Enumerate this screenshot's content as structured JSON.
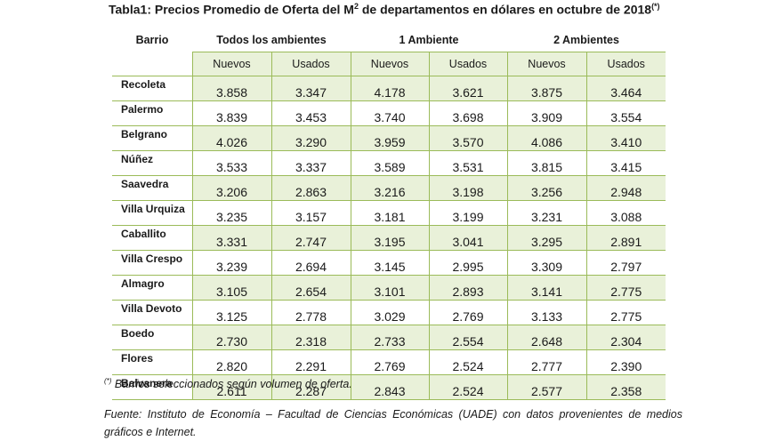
{
  "title": {
    "pre": "Tabla1: Precios Promedio de Oferta del M",
    "sup": "2",
    "post": " de departamentos en dólares en octubre de 2018",
    "mark": "(*)"
  },
  "header": {
    "barrio": "Barrio",
    "groups": [
      "Todos los ambientes",
      "1 Ambiente",
      "2 Ambientes"
    ],
    "sub": [
      "Nuevos",
      "Usados",
      "Nuevos",
      "Usados",
      "Nuevos",
      "Usados"
    ]
  },
  "rows": [
    {
      "name": "Recoleta",
      "values": [
        "3.858",
        "3.347",
        "4.178",
        "3.621",
        "3.875",
        "3.464"
      ]
    },
    {
      "name": "Palermo",
      "values": [
        "3.839",
        "3.453",
        "3.740",
        "3.698",
        "3.909",
        "3.554"
      ]
    },
    {
      "name": "Belgrano",
      "values": [
        "4.026",
        "3.290",
        "3.959",
        "3.570",
        "4.086",
        "3.410"
      ]
    },
    {
      "name": "Núñez",
      "values": [
        "3.533",
        "3.337",
        "3.589",
        "3.531",
        "3.815",
        "3.415"
      ]
    },
    {
      "name": "Saavedra",
      "values": [
        "3.206",
        "2.863",
        "3.216",
        "3.198",
        "3.256",
        "2.948"
      ]
    },
    {
      "name": "Villa Urquiza",
      "values": [
        "3.235",
        "3.157",
        "3.181",
        "3.199",
        "3.231",
        "3.088"
      ]
    },
    {
      "name": "Caballito",
      "values": [
        "3.331",
        "2.747",
        "3.195",
        "3.041",
        "3.295",
        "2.891"
      ]
    },
    {
      "name": "Villa Crespo",
      "values": [
        "3.239",
        "2.694",
        "3.145",
        "2.995",
        "3.309",
        "2.797"
      ]
    },
    {
      "name": "Almagro",
      "values": [
        "3.105",
        "2.654",
        "3.101",
        "2.893",
        "3.141",
        "2.775"
      ]
    },
    {
      "name": "Villa Devoto",
      "values": [
        "3.125",
        "2.778",
        "3.029",
        "2.769",
        "3.133",
        "2.775"
      ]
    },
    {
      "name": "Boedo",
      "values": [
        "2.730",
        "2.318",
        "2.733",
        "2.554",
        "2.648",
        "2.304"
      ]
    },
    {
      "name": "Flores",
      "values": [
        "2.820",
        "2.291",
        "2.769",
        "2.524",
        "2.777",
        "2.390"
      ]
    },
    {
      "name": "Balvanera",
      "values": [
        "2.611",
        "2.287",
        "2.843",
        "2.524",
        "2.577",
        "2.358"
      ]
    }
  ],
  "note": {
    "mark": "(*)",
    "text": " Barrios seleccionados según volumen de oferta."
  },
  "source": "Fuente: Instituto de Economía – Facultad de Ciencias Económicas (UADE) con datos provenientes de medios gráficos e Internet.",
  "colors": {
    "row_shade": "#e9f1d9",
    "grid_line": "#9bbb59"
  }
}
